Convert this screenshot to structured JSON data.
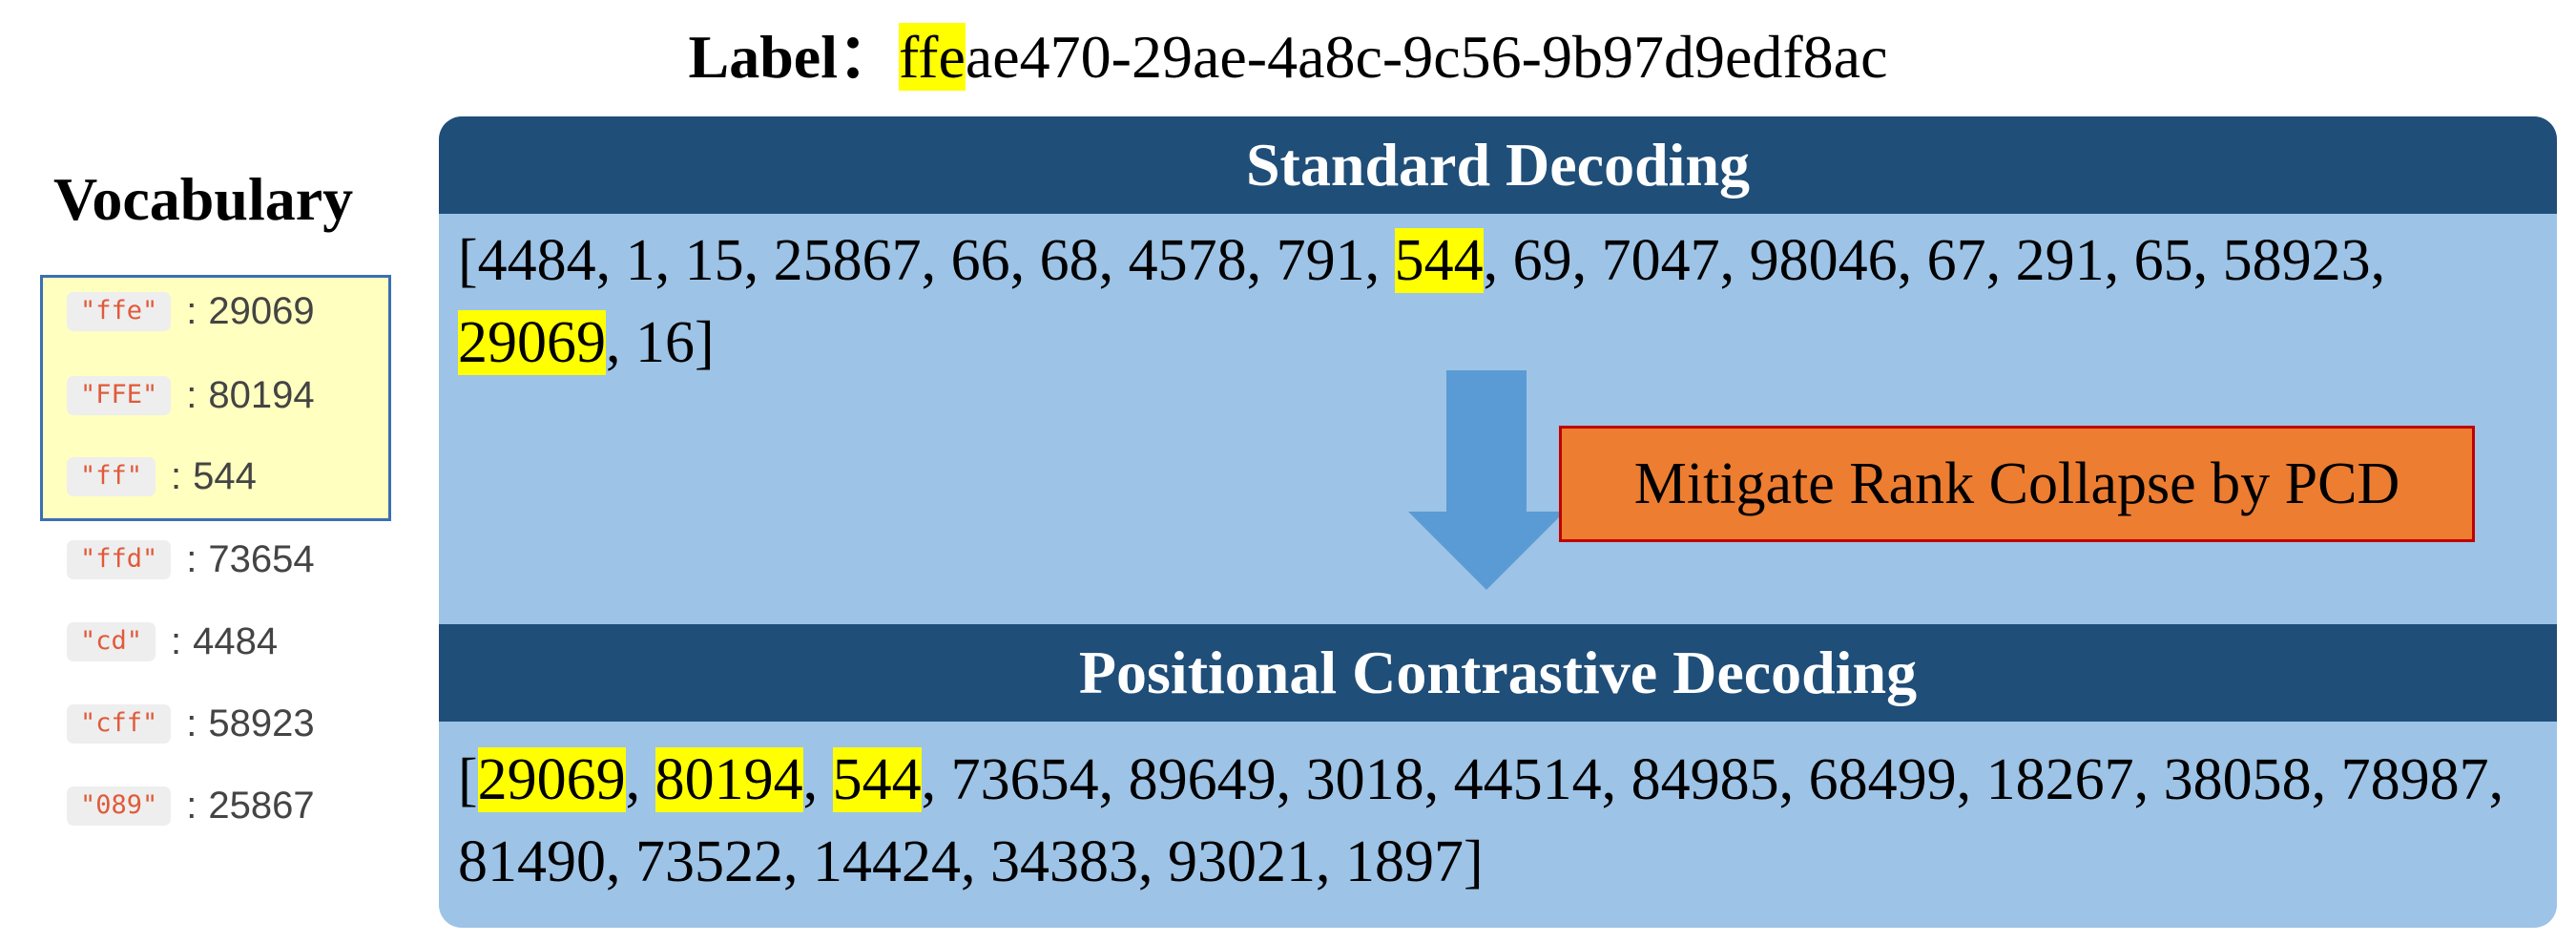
{
  "label": {
    "caption": "Label：",
    "value_highlight": "ffe",
    "value_rest": "ae470-29ae-4a8c-9c56-9b97d9edf8ac"
  },
  "vocabulary": {
    "title": "Vocabulary",
    "highlight_color": "#ffffc0",
    "entries": [
      {
        "key": "\"ffe\"",
        "sep": ":",
        "value": "29069",
        "highlighted": true
      },
      {
        "key": "\"FFE\"",
        "sep": ":",
        "value": "80194",
        "highlighted": true
      },
      {
        "key": "\"ff\"",
        "sep": ":",
        "value": "544",
        "highlighted": true
      },
      {
        "key": "\"ffd\"",
        "sep": ":",
        "value": "73654",
        "highlighted": false
      },
      {
        "key": "\"cd\"",
        "sep": ":",
        "value": "4484",
        "highlighted": false
      },
      {
        "key": "\"cff\"",
        "sep": ":",
        "value": "58923",
        "highlighted": false
      },
      {
        "key": "\"089\"",
        "sep": ":",
        "value": "25867",
        "highlighted": false
      }
    ]
  },
  "standard": {
    "title": "Standard Decoding",
    "tokens": [
      {
        "t": "["
      },
      {
        "t": "4484"
      },
      {
        "t": ", "
      },
      {
        "t": "1"
      },
      {
        "t": ", "
      },
      {
        "t": "15"
      },
      {
        "t": ", "
      },
      {
        "t": "25867"
      },
      {
        "t": ", "
      },
      {
        "t": "66"
      },
      {
        "t": ", "
      },
      {
        "t": "68"
      },
      {
        "t": ", "
      },
      {
        "t": "4578"
      },
      {
        "t": ", "
      },
      {
        "t": "791"
      },
      {
        "t": ", "
      },
      {
        "t": "544",
        "hl": true
      },
      {
        "t": ", "
      },
      {
        "t": "69"
      },
      {
        "t": ", "
      },
      {
        "t": "7047"
      },
      {
        "t": ", "
      },
      {
        "t": "98046"
      },
      {
        "t": ", "
      },
      {
        "t": "67"
      },
      {
        "t": ", "
      },
      {
        "t": "291"
      },
      {
        "t": ", "
      },
      {
        "t": "65"
      },
      {
        "t": ", "
      },
      {
        "t": "58923"
      },
      {
        "t": ", "
      },
      {
        "t": "29069",
        "hl": true
      },
      {
        "t": ", "
      },
      {
        "t": "16"
      },
      {
        "t": "]"
      }
    ]
  },
  "pcd": {
    "title": "Positional Contrastive Decoding",
    "tokens": [
      {
        "t": "["
      },
      {
        "t": "29069",
        "hl": true
      },
      {
        "t": ", "
      },
      {
        "t": "80194",
        "hl": true
      },
      {
        "t": ", "
      },
      {
        "t": "544",
        "hl": true
      },
      {
        "t": ", "
      },
      {
        "t": "73654"
      },
      {
        "t": ", "
      },
      {
        "t": "89649"
      },
      {
        "t": ", "
      },
      {
        "t": "3018"
      },
      {
        "t": ", "
      },
      {
        "t": "44514"
      },
      {
        "t": ", "
      },
      {
        "t": "84985"
      },
      {
        "t": ", "
      },
      {
        "t": "68499"
      },
      {
        "t": ", "
      },
      {
        "t": "18267"
      },
      {
        "t": ", "
      },
      {
        "t": "38058"
      },
      {
        "t": ", "
      },
      {
        "t": "78987"
      },
      {
        "t": ", "
      },
      {
        "t": "81490"
      },
      {
        "t": ", "
      },
      {
        "t": "73522"
      },
      {
        "t": ", "
      },
      {
        "t": "14424"
      },
      {
        "t": ", "
      },
      {
        "t": "34383"
      },
      {
        "t": ", "
      },
      {
        "t": "93021"
      },
      {
        "t": ", "
      },
      {
        "t": "1897"
      },
      {
        "t": "]"
      }
    ]
  },
  "mitigate_label": "Mitigate Rank Collapse by PCD",
  "colors": {
    "panel": "#9dc3e6",
    "header_bar": "#1f4e79",
    "highlight": "#ffff00",
    "arrow": "#5b9bd5",
    "orange_box": "#ed7d31",
    "orange_border": "#c00000",
    "vocab_border": "#3a6fb4"
  }
}
